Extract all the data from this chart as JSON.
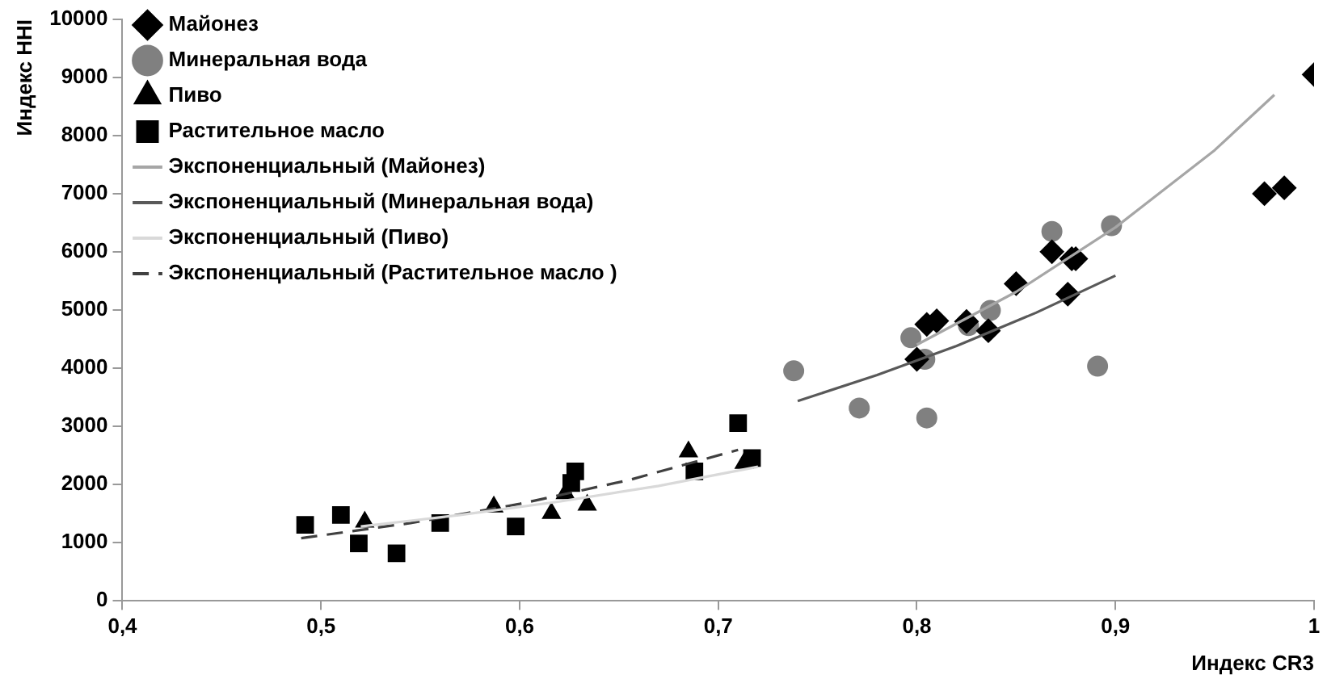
{
  "chart_data": {
    "type": "scatter",
    "xlabel": "Индекс CR3",
    "ylabel": "Индекс HHI",
    "xlim": [
      0.4,
      1
    ],
    "xticks": [
      {
        "value": 0.4,
        "label": "0,4"
      },
      {
        "value": 0.5,
        "label": "0,5"
      },
      {
        "value": 0.6,
        "label": "0,6"
      },
      {
        "value": 0.7,
        "label": "0,7"
      },
      {
        "value": 0.8,
        "label": "0,8"
      },
      {
        "value": 0.9,
        "label": "0,9"
      },
      1
    ],
    "ylim": [
      0,
      10000
    ],
    "yticks": [
      0,
      1000,
      2000,
      3000,
      4000,
      5000,
      6000,
      7000,
      8000,
      9000,
      10000
    ],
    "grid": false,
    "legend": "top left",
    "series": [
      {
        "name": "Майонез",
        "marker": "diamond",
        "color": "#000000",
        "x": [
          0.8,
          0.805,
          0.81,
          0.825,
          0.836,
          0.85,
          0.868,
          0.876,
          0.878,
          0.88,
          0.975,
          0.985,
          1.0
        ],
        "values": [
          4150,
          4750,
          4810,
          4800,
          4640,
          5450,
          6000,
          5270,
          5880,
          5880,
          7000,
          7100,
          9050
        ]
      },
      {
        "name": "Минеральная вода",
        "marker": "circle",
        "color": "#808080",
        "x": [
          0.738,
          0.771,
          0.797,
          0.804,
          0.805,
          0.826,
          0.837,
          0.868,
          0.891,
          0.898
        ],
        "values": [
          3950,
          3310,
          4520,
          4150,
          3140,
          4730,
          4990,
          6350,
          4030,
          6450
        ]
      },
      {
        "name": "Пиво",
        "marker": "triangle",
        "color": "#000000",
        "x": [
          0.522,
          0.587,
          0.616,
          0.623,
          0.634,
          0.685,
          0.713
        ],
        "values": [
          1350,
          1610,
          1500,
          1840,
          1640,
          2560,
          2360
        ]
      },
      {
        "name": "Растительное масло",
        "marker": "square",
        "color": "#000000",
        "x": [
          0.492,
          0.51,
          0.519,
          0.538,
          0.56,
          0.598,
          0.626,
          0.628,
          0.688,
          0.71,
          0.717
        ],
        "values": [
          1300,
          1470,
          980,
          810,
          1330,
          1270,
          2020,
          2220,
          2220,
          3050,
          2450
        ]
      },
      {
        "name": "Экспоненциальный (Майонез)",
        "type": "line",
        "marker": "none",
        "line_style": "solid",
        "color": "#a6a6a6",
        "x": [
          0.8,
          0.85,
          0.9,
          0.95,
          0.98
        ],
        "values": [
          4400,
          5310,
          6420,
          7750,
          8700
        ]
      },
      {
        "name": "Экспоненциальный (Минеральная вода)",
        "type": "line",
        "marker": "none",
        "line_style": "solid",
        "color": "#595959",
        "x": [
          0.74,
          0.78,
          0.82,
          0.86,
          0.9
        ],
        "values": [
          3430,
          3880,
          4380,
          4950,
          5590
        ]
      },
      {
        "name": "Экспоненциальный (Пиво)",
        "type": "line",
        "marker": "none",
        "line_style": "solid",
        "color": "#d9d9d9",
        "x": [
          0.52,
          0.57,
          0.62,
          0.67,
          0.72
        ],
        "values": [
          1270,
          1470,
          1700,
          1970,
          2300
        ]
      },
      {
        "name": "Экспоненциальный (Растительное масло )",
        "type": "line",
        "marker": "none",
        "line_style": "dashed",
        "color": "#404040",
        "x": [
          0.49,
          0.545,
          0.6,
          0.655,
          0.71
        ],
        "values": [
          1070,
          1330,
          1660,
          2070,
          2590
        ]
      }
    ]
  }
}
